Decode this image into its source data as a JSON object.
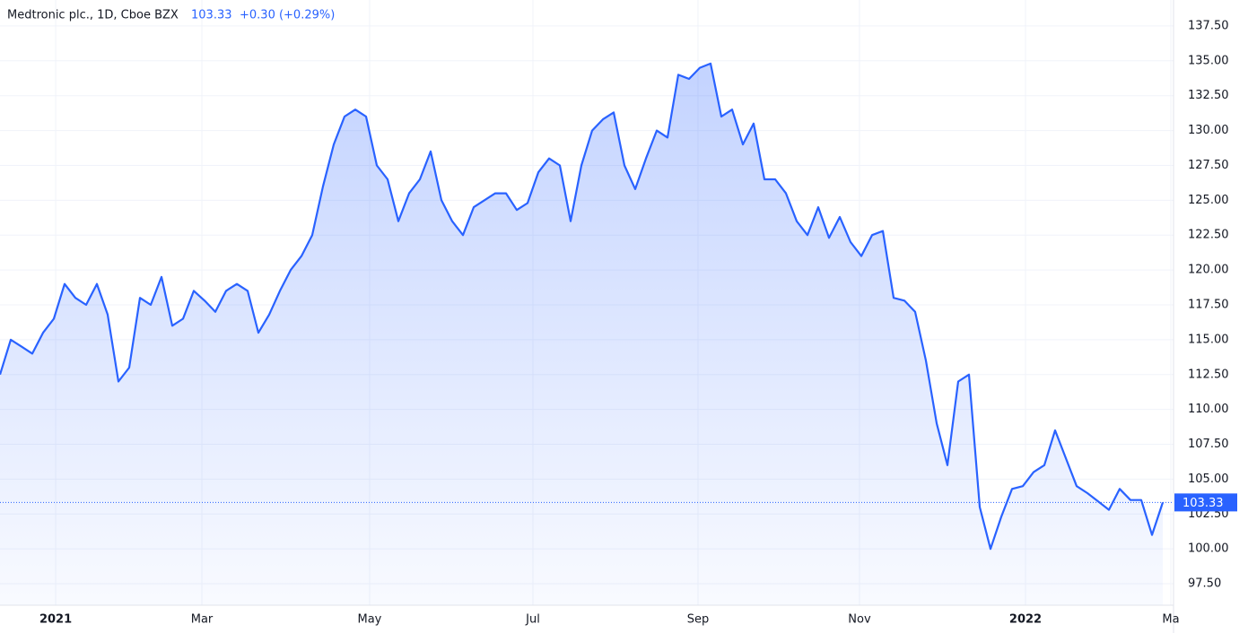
{
  "chart_data": {
    "type": "area",
    "title": "Medtronic plc., 1D, Cboe BZX",
    "last_price": 103.33,
    "change_label": "+0.30 (+0.29%)",
    "color": "#2962ff",
    "grid": true,
    "xlim": [
      0,
      109
    ],
    "xticks": [
      {
        "value": 5.17,
        "label": "2021"
      },
      {
        "value": 18.75,
        "label": "Mar"
      },
      {
        "value": 34.33,
        "label": "May"
      },
      {
        "value": 49.5,
        "label": "Jul"
      },
      {
        "value": 64.83,
        "label": "Sep"
      },
      {
        "value": 79.83,
        "label": "Nov"
      },
      {
        "value": 95.25,
        "label": "2022"
      },
      {
        "value": 108.75,
        "label": "Ma"
      }
    ],
    "ylim": [
      95.96,
      139.36
    ],
    "yticks": [
      {
        "value": 97.5,
        "label": "97.50"
      },
      {
        "value": 100,
        "label": "100.00"
      },
      {
        "value": 102.5,
        "label": "102.50"
      },
      {
        "value": 105,
        "label": "105.00"
      },
      {
        "value": 107.5,
        "label": "107.50"
      },
      {
        "value": 110,
        "label": "110.00"
      },
      {
        "value": 112.5,
        "label": "112.50"
      },
      {
        "value": 115,
        "label": "115.00"
      },
      {
        "value": 117.5,
        "label": "117.50"
      },
      {
        "value": 120,
        "label": "120.00"
      },
      {
        "value": 122.5,
        "label": "122.50"
      },
      {
        "value": 125,
        "label": "125.00"
      },
      {
        "value": 127.5,
        "label": "127.50"
      },
      {
        "value": 130,
        "label": "130.00"
      },
      {
        "value": 132.5,
        "label": "132.50"
      },
      {
        "value": 135,
        "label": "135.00"
      },
      {
        "value": 137.5,
        "label": "137.50"
      }
    ],
    "values": [
      112.5,
      115,
      114.5,
      114,
      115.5,
      116.5,
      119,
      118,
      117.5,
      119,
      116.8,
      112,
      113,
      118,
      117.5,
      119.5,
      116,
      116.5,
      118.5,
      117.8,
      117,
      118.5,
      119,
      118.5,
      115.5,
      116.8,
      118.5,
      120,
      121,
      122.5,
      126,
      129,
      131,
      131.5,
      131,
      127.5,
      126.5,
      123.5,
      125.5,
      126.5,
      128.5,
      125,
      123.5,
      122.5,
      124.5,
      125,
      125.5,
      125.5,
      124.3,
      124.8,
      127,
      128,
      127.5,
      123.5,
      127.5,
      130,
      130.8,
      131.3,
      127.5,
      125.8,
      128,
      130,
      129.5,
      134,
      133.7,
      134.5,
      134.8,
      131,
      131.5,
      129,
      130.5,
      126.5,
      126.5,
      125.5,
      123.5,
      122.5,
      124.5,
      122.3,
      123.8,
      122,
      121,
      122.5,
      122.8,
      118,
      117.8,
      117,
      113.5,
      109,
      106,
      112,
      112.5,
      103,
      100,
      102.3,
      104.3,
      104.5,
      105.5,
      106,
      108.5,
      106.5,
      104.5,
      104,
      103.4,
      102.8,
      104.3,
      103.5,
      103.5,
      101,
      103.33
    ]
  }
}
